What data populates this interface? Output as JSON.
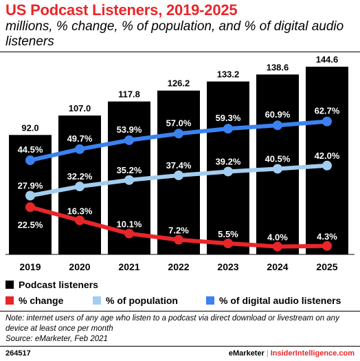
{
  "title": "US Podcast Listeners, 2019-2025",
  "subtitle": "millions, % change, % of population, and % of digital audio listeners",
  "chart_data": {
    "type": "bar",
    "categories": [
      "2019",
      "2020",
      "2021",
      "2022",
      "2023",
      "2024",
      "2025"
    ],
    "ylim": [
      0,
      144.6
    ],
    "series": [
      {
        "name": "Podcast listeners",
        "type": "bar",
        "color": "#000000",
        "values": [
          92.0,
          107.0,
          117.8,
          126.2,
          133.2,
          138.6,
          144.6
        ],
        "labels": [
          "92.0",
          "107.0",
          "117.8",
          "126.2",
          "133.2",
          "138.6",
          "144.6"
        ]
      },
      {
        "name": "% change",
        "type": "line",
        "color": "#e8262a",
        "values": [
          22.5,
          16.3,
          10.1,
          7.2,
          5.5,
          4.0,
          4.3
        ],
        "labels": [
          "22.5%",
          "16.3%",
          "10.1%",
          "7.2%",
          "5.5%",
          "4.0%",
          "4.3%"
        ]
      },
      {
        "name": "% of population",
        "type": "line",
        "color": "#a3cdf0",
        "values": [
          27.9,
          32.2,
          35.2,
          37.4,
          39.2,
          40.5,
          42.0
        ],
        "labels": [
          "27.9%",
          "32.2%",
          "35.2%",
          "37.4%",
          "39.2%",
          "40.5%",
          "42.0%"
        ]
      },
      {
        "name": "% of digital audio listeners",
        "type": "line",
        "color": "#3b82f0",
        "values": [
          44.5,
          49.7,
          53.9,
          57.0,
          59.3,
          60.9,
          62.7
        ],
        "labels": [
          "44.5%",
          "49.7%",
          "53.9%",
          "57.0%",
          "59.3%",
          "60.9%",
          "62.7%"
        ]
      }
    ]
  },
  "legend": {
    "podcast": "Podcast listeners",
    "change": "% change",
    "population": "% of population",
    "digital": "% of digital audio listeners"
  },
  "note": "Note: internet users of any age who listen to a podcast via direct download or livestream on any device at least once per month",
  "source": "Source: eMarketer, Feb 2021",
  "footer": {
    "id": "264517",
    "brand1": "eMarketer",
    "separator": "|",
    "brand2": "InsiderIntelligence.com"
  }
}
